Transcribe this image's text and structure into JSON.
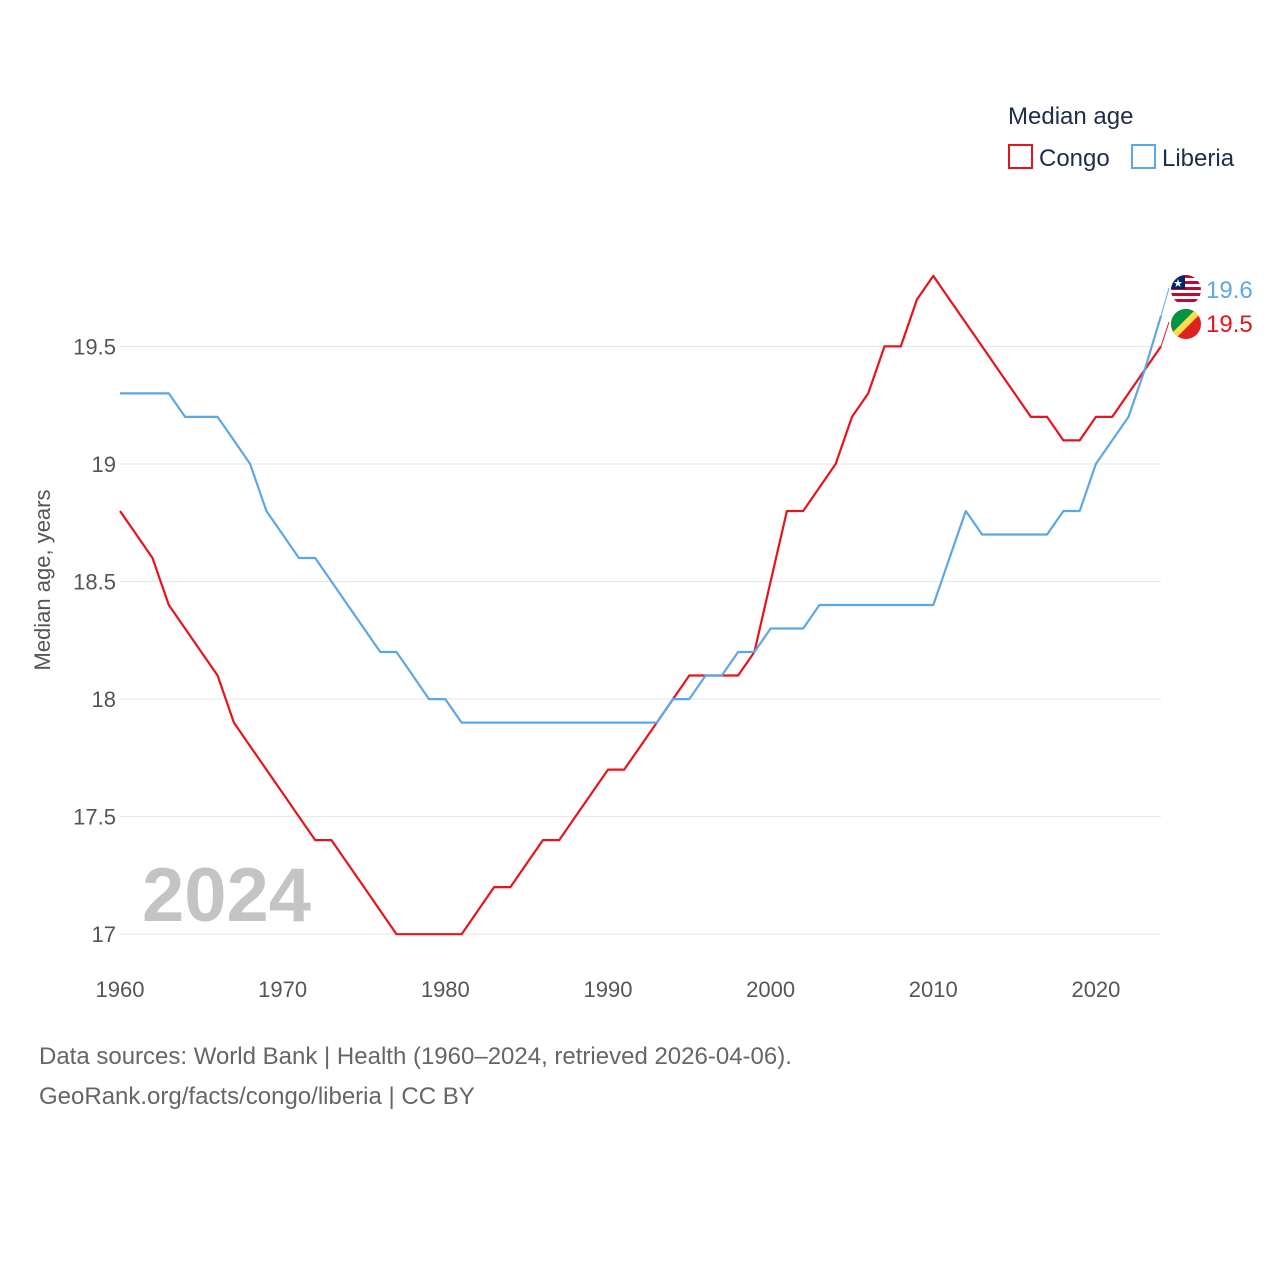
{
  "chart_data": {
    "type": "line",
    "ylabel": "Median age, years",
    "xlabel": "",
    "legend_title": "Median age",
    "year_label": "2024",
    "xlim": [
      1960,
      2024
    ],
    "ylim": [
      16.72,
      19.91
    ],
    "yticks": [
      17,
      17.5,
      18,
      18.5,
      19,
      19.5
    ],
    "ytick_labels": [
      "17",
      "17.5",
      "18",
      "18.5",
      "19",
      "19.5"
    ],
    "xticks": [
      1960,
      1970,
      1980,
      1990,
      2000,
      2010,
      2020
    ],
    "xtick_labels": [
      "1960",
      "1970",
      "1980",
      "1990",
      "2000",
      "2010",
      "2020"
    ],
    "series": [
      {
        "name": "Congo",
        "color": "#e8141b",
        "end_label": "19.5",
        "x": [
          1960,
          1961,
          1962,
          1963,
          1964,
          1965,
          1966,
          1967,
          1968,
          1969,
          1970,
          1971,
          1972,
          1973,
          1974,
          1975,
          1976,
          1977,
          1978,
          1979,
          1980,
          1981,
          1982,
          1983,
          1984,
          1985,
          1986,
          1987,
          1988,
          1989,
          1990,
          1991,
          1992,
          1993,
          1994,
          1995,
          1996,
          1997,
          1998,
          1999,
          2000,
          2001,
          2002,
          2003,
          2004,
          2005,
          2006,
          2007,
          2008,
          2009,
          2010,
          2011,
          2012,
          2013,
          2014,
          2015,
          2016,
          2017,
          2018,
          2019,
          2020,
          2021,
          2022,
          2023,
          2024
        ],
        "values": [
          18.8,
          18.7,
          18.6,
          18.4,
          18.3,
          18.2,
          18.1,
          17.9,
          17.8,
          17.7,
          17.6,
          17.5,
          17.4,
          17.4,
          17.3,
          17.2,
          17.1,
          17.0,
          17.0,
          17.0,
          17.0,
          17.0,
          17.1,
          17.2,
          17.2,
          17.3,
          17.4,
          17.4,
          17.5,
          17.6,
          17.7,
          17.7,
          17.8,
          17.9,
          18.0,
          18.1,
          18.1,
          18.1,
          18.1,
          18.2,
          18.5,
          18.8,
          18.8,
          18.9,
          19.0,
          19.2,
          19.3,
          19.5,
          19.5,
          19.7,
          19.8,
          19.7,
          19.6,
          19.5,
          19.4,
          19.3,
          19.2,
          19.2,
          19.1,
          19.1,
          19.2,
          19.2,
          19.3,
          19.4,
          19.5
        ]
      },
      {
        "name": "Liberia",
        "color": "#5ca8e6",
        "end_label": "19.6",
        "x": [
          1960,
          1961,
          1962,
          1963,
          1964,
          1965,
          1966,
          1967,
          1968,
          1969,
          1970,
          1971,
          1972,
          1973,
          1974,
          1975,
          1976,
          1977,
          1978,
          1979,
          1980,
          1981,
          1982,
          1983,
          1984,
          1985,
          1986,
          1987,
          1988,
          1989,
          1990,
          1991,
          1992,
          1993,
          1994,
          1995,
          1996,
          1997,
          1998,
          1999,
          2000,
          2001,
          2002,
          2003,
          2004,
          2005,
          2006,
          2007,
          2008,
          2009,
          2010,
          2011,
          2012,
          2013,
          2014,
          2015,
          2016,
          2017,
          2018,
          2019,
          2020,
          2021,
          2022,
          2023,
          2024
        ],
        "values": [
          19.3,
          19.3,
          19.3,
          19.3,
          19.2,
          19.2,
          19.2,
          19.1,
          19.0,
          18.8,
          18.7,
          18.6,
          18.6,
          18.5,
          18.4,
          18.3,
          18.2,
          18.2,
          18.1,
          18.0,
          18.0,
          17.9,
          17.9,
          17.9,
          17.9,
          17.9,
          17.9,
          17.9,
          17.9,
          17.9,
          17.9,
          17.9,
          17.9,
          17.9,
          18.0,
          18.0,
          18.1,
          18.1,
          18.2,
          18.2,
          18.3,
          18.3,
          18.3,
          18.4,
          18.4,
          18.4,
          18.4,
          18.4,
          18.4,
          18.4,
          18.4,
          18.6,
          18.8,
          18.7,
          18.7,
          18.7,
          18.7,
          18.7,
          18.8,
          18.8,
          19.0,
          19.1,
          19.2,
          19.4,
          19.63
        ]
      }
    ],
    "source_line1": "Data sources: World Bank | Health (1960–2024, retrieved 2026-04-06).",
    "source_line2": "GeoRank.org/facts/congo/liberia | CC BY"
  }
}
